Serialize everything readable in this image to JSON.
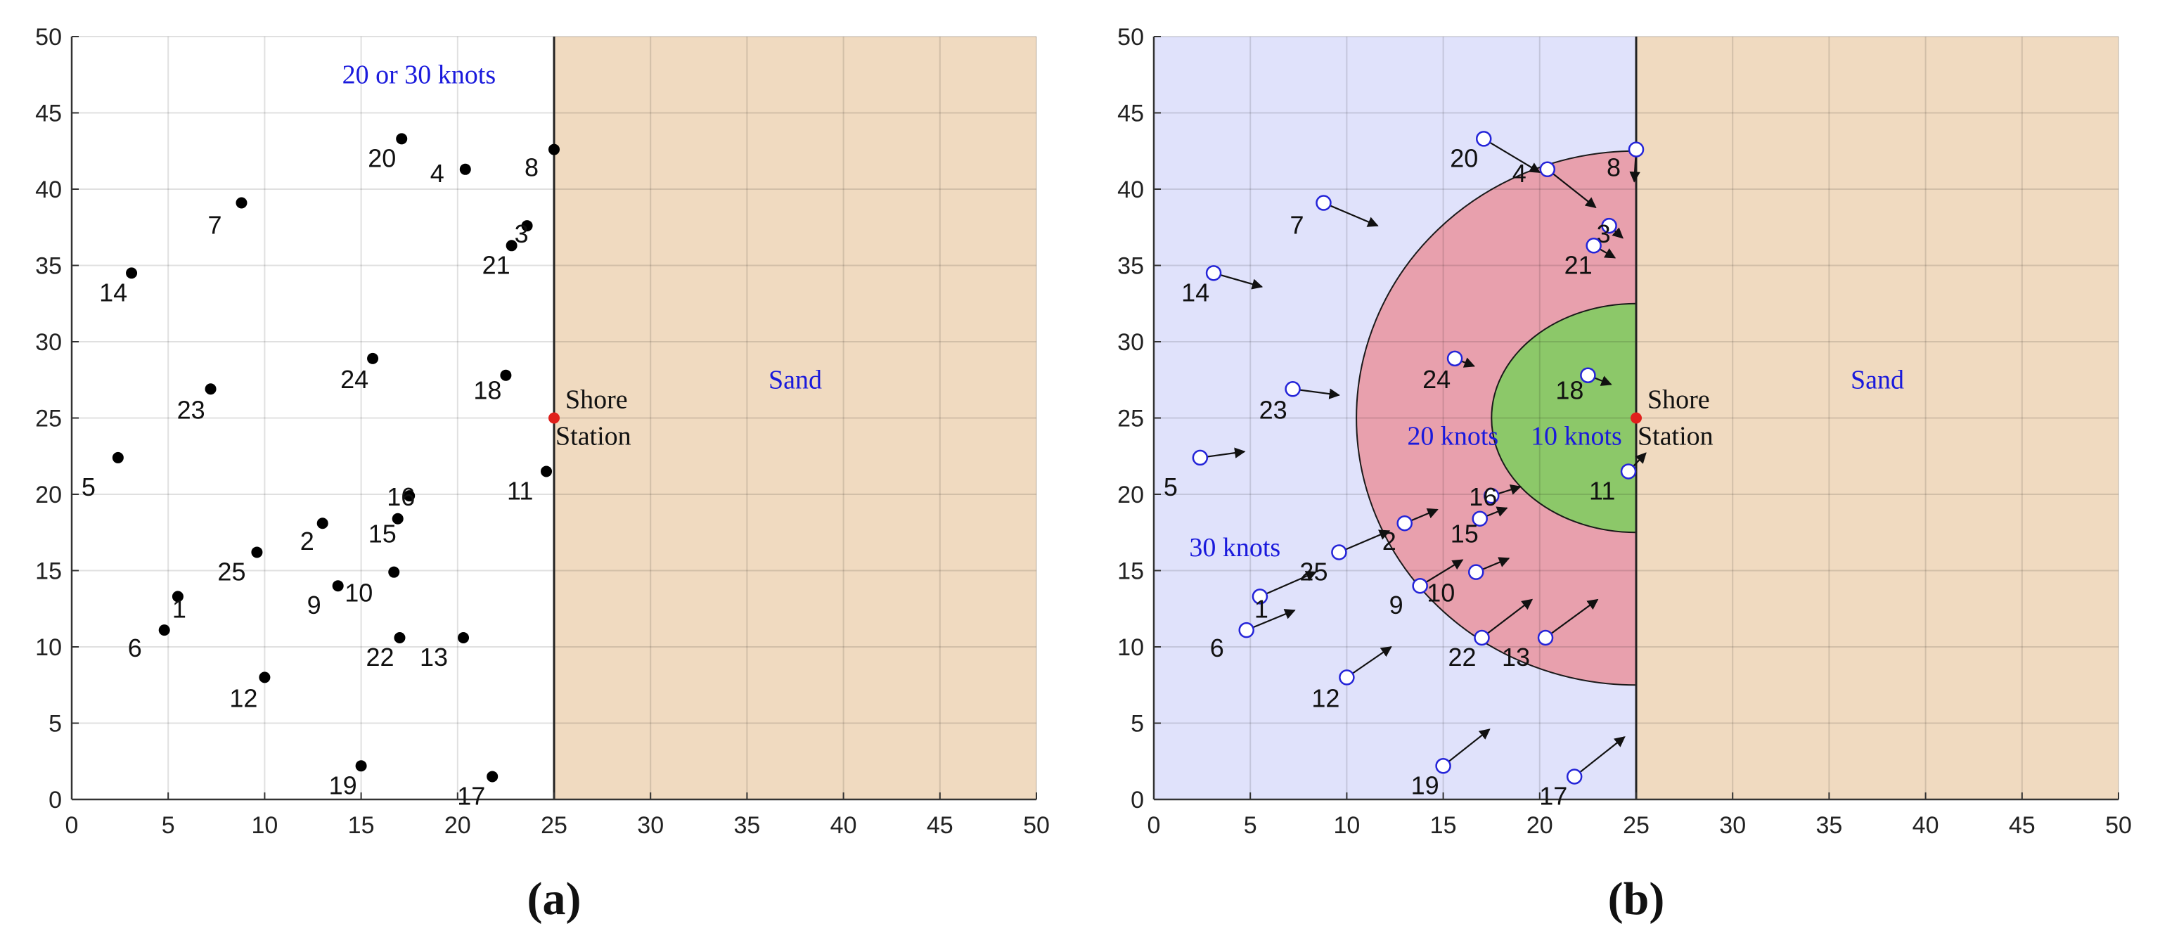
{
  "chart_data": [
    {
      "type": "scatter",
      "panel_label": "(a)",
      "xlim": [
        0,
        50
      ],
      "ylim": [
        0,
        50
      ],
      "xticks": [
        0,
        5,
        10,
        15,
        20,
        25,
        30,
        35,
        40,
        45,
        50
      ],
      "yticks": [
        0,
        5,
        10,
        15,
        20,
        25,
        30,
        35,
        40,
        45,
        50
      ],
      "grid": true,
      "regions": [
        {
          "name": "Sand",
          "x_range": [
            25,
            50
          ],
          "color": "#f0dac0"
        }
      ],
      "station": {
        "label": "Shore\nStation",
        "x": 25,
        "y": 25,
        "color": "#e0201c"
      },
      "annotations": [
        {
          "text": "20 or 30 knots",
          "x": 18,
          "y": 47.5,
          "color": "#1a1adc"
        },
        {
          "text": "Sand",
          "x": 37.5,
          "y": 27.5,
          "color": "#1a1adc"
        }
      ],
      "points": [
        {
          "id": "1",
          "x": 5.5,
          "y": 13.3
        },
        {
          "id": "2",
          "x": 13,
          "y": 18.1
        },
        {
          "id": "3",
          "x": 23.6,
          "y": 37.6
        },
        {
          "id": "4",
          "x": 20.4,
          "y": 41.3
        },
        {
          "id": "5",
          "x": 2.4,
          "y": 22.4
        },
        {
          "id": "6",
          "x": 4.8,
          "y": 11.1
        },
        {
          "id": "7",
          "x": 8.8,
          "y": 39.1
        },
        {
          "id": "8",
          "x": 25,
          "y": 42.6
        },
        {
          "id": "9",
          "x": 13.8,
          "y": 14
        },
        {
          "id": "10",
          "x": 16.7,
          "y": 14.9
        },
        {
          "id": "11",
          "x": 24.6,
          "y": 21.5
        },
        {
          "id": "12",
          "x": 10,
          "y": 8
        },
        {
          "id": "13",
          "x": 20.3,
          "y": 10.6
        },
        {
          "id": "14",
          "x": 3.1,
          "y": 34.5
        },
        {
          "id": "15",
          "x": 16.9,
          "y": 18.4
        },
        {
          "id": "16",
          "x": 17.5,
          "y": 19.9
        },
        {
          "id": "17",
          "x": 21.8,
          "y": 1.5
        },
        {
          "id": "18",
          "x": 22.5,
          "y": 27.8
        },
        {
          "id": "19",
          "x": 15,
          "y": 2.2
        },
        {
          "id": "20",
          "x": 17.1,
          "y": 43.3
        },
        {
          "id": "21",
          "x": 22.8,
          "y": 36.3
        },
        {
          "id": "22",
          "x": 17,
          "y": 10.6
        },
        {
          "id": "23",
          "x": 7.2,
          "y": 26.9
        },
        {
          "id": "24",
          "x": 15.6,
          "y": 28.9
        },
        {
          "id": "25",
          "x": 9.6,
          "y": 16.2
        }
      ]
    },
    {
      "type": "scatter",
      "panel_label": "(b)",
      "xlim": [
        0,
        50
      ],
      "ylim": [
        0,
        50
      ],
      "xticks": [
        0,
        5,
        10,
        15,
        20,
        25,
        30,
        35,
        40,
        45,
        50
      ],
      "yticks": [
        0,
        5,
        10,
        15,
        20,
        25,
        30,
        35,
        40,
        45,
        50
      ],
      "grid": true,
      "regions": [
        {
          "name": "30 knots",
          "x_range": [
            0,
            25
          ],
          "color": "#e0e2fb"
        },
        {
          "name": "20 knots",
          "shape": "half-ellipse",
          "center": [
            25,
            25
          ],
          "rx": 14.5,
          "ry": 17.5,
          "color": "#e8a0ad"
        },
        {
          "name": "10 knots",
          "shape": "half-ellipse",
          "center": [
            25,
            25
          ],
          "rx": 7.5,
          "ry": 7.5,
          "color": "#8cc869"
        },
        {
          "name": "Sand",
          "x_range": [
            25,
            50
          ],
          "color": "#f0dac0"
        }
      ],
      "station": {
        "label": "Shore\nStation",
        "x": 25,
        "y": 25,
        "color": "#e0201c"
      },
      "annotations": [
        {
          "text": "30 knots",
          "x": 4.2,
          "y": 16.5,
          "color": "#1a1adc"
        },
        {
          "text": "20 knots",
          "x": 15.5,
          "y": 23.8,
          "color": "#1a1adc"
        },
        {
          "text": "10 knots",
          "x": 21.9,
          "y": 23.8,
          "color": "#1a1adc"
        },
        {
          "text": "Sand",
          "x": 37.5,
          "y": 27.5,
          "color": "#1a1adc"
        }
      ],
      "points": [
        {
          "id": "1",
          "x": 5.5,
          "y": 13.3,
          "dx": 2.9,
          "dy": 1.6
        },
        {
          "id": "2",
          "x": 13,
          "y": 18.1,
          "dx": 1.7,
          "dy": 0.9
        },
        {
          "id": "3",
          "x": 23.6,
          "y": 37.6,
          "dx": 0.7,
          "dy": -0.8
        },
        {
          "id": "4",
          "x": 20.4,
          "y": 41.3,
          "dx": 2.5,
          "dy": -2.5
        },
        {
          "id": "5",
          "x": 2.4,
          "y": 22.4,
          "dx": 2.3,
          "dy": 0.4
        },
        {
          "id": "6",
          "x": 4.8,
          "y": 11.1,
          "dx": 2.5,
          "dy": 1.3
        },
        {
          "id": "7",
          "x": 8.8,
          "y": 39.1,
          "dx": 2.8,
          "dy": -1.5
        },
        {
          "id": "8",
          "x": 25,
          "y": 42.6,
          "dx": -0.1,
          "dy": -2.1
        },
        {
          "id": "9",
          "x": 13.8,
          "y": 14,
          "dx": 2.2,
          "dy": 1.7
        },
        {
          "id": "10",
          "x": 16.7,
          "y": 14.9,
          "dx": 1.7,
          "dy": 0.9
        },
        {
          "id": "11",
          "x": 24.6,
          "y": 21.5,
          "dx": 0.9,
          "dy": 1.2
        },
        {
          "id": "12",
          "x": 10,
          "y": 8,
          "dx": 2.3,
          "dy": 2
        },
        {
          "id": "13",
          "x": 20.3,
          "y": 10.6,
          "dx": 2.7,
          "dy": 2.5
        },
        {
          "id": "14",
          "x": 3.1,
          "y": 34.5,
          "dx": 2.5,
          "dy": -0.9
        },
        {
          "id": "15",
          "x": 16.9,
          "y": 18.4,
          "dx": 1.4,
          "dy": 0.7
        },
        {
          "id": "16",
          "x": 17.5,
          "y": 19.9,
          "dx": 1.5,
          "dy": 0.6
        },
        {
          "id": "17",
          "x": 21.8,
          "y": 1.5,
          "dx": 2.6,
          "dy": 2.6
        },
        {
          "id": "18",
          "x": 22.5,
          "y": 27.8,
          "dx": 1.2,
          "dy": -0.6
        },
        {
          "id": "19",
          "x": 15,
          "y": 2.2,
          "dx": 2.4,
          "dy": 2.4
        },
        {
          "id": "20",
          "x": 17.1,
          "y": 43.3,
          "dx": 2.9,
          "dy": -2.2
        },
        {
          "id": "21",
          "x": 22.8,
          "y": 36.3,
          "dx": 1.1,
          "dy": -0.8
        },
        {
          "id": "22",
          "x": 17,
          "y": 10.6,
          "dx": 2.6,
          "dy": 2.5
        },
        {
          "id": "23",
          "x": 7.2,
          "y": 26.9,
          "dx": 2.4,
          "dy": -0.4
        },
        {
          "id": "24",
          "x": 15.6,
          "y": 28.9,
          "dx": 1,
          "dy": -0.5
        },
        {
          "id": "25",
          "x": 9.6,
          "y": 16.2,
          "dx": 2.6,
          "dy": 1.4
        }
      ]
    }
  ]
}
